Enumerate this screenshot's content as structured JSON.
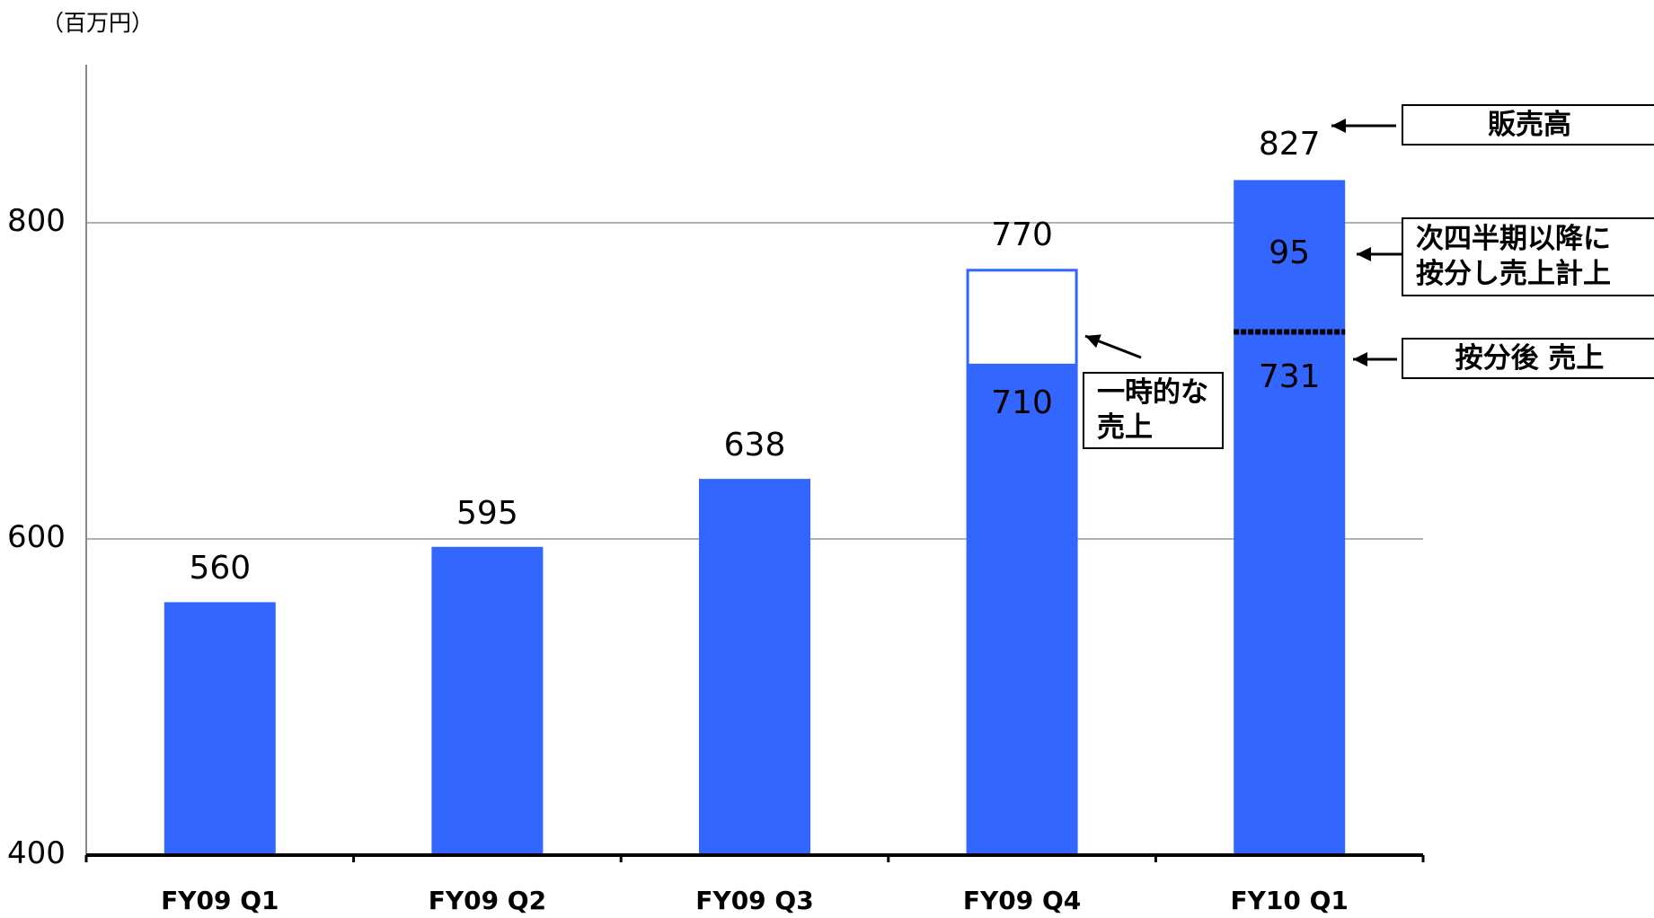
{
  "chart_data": {
    "type": "bar",
    "unit_label": "（百万円）",
    "categories": [
      "FY09 Q1",
      "FY09 Q2",
      "FY09 Q3",
      "FY09 Q4",
      "FY10 Q1"
    ],
    "values": [
      560,
      595,
      638,
      770,
      827
    ],
    "yticks": [
      "400",
      "600",
      "800"
    ],
    "ylim": [
      400,
      900
    ],
    "grid": true,
    "bar_color": "#3366FF",
    "breakdowns": {
      "FY09 Q4": {
        "base": 710,
        "base_label": "710",
        "total_label": "770"
      },
      "FY10 Q1": {
        "base": 731,
        "base_label": "731",
        "extra_label": "95",
        "total_label": "827"
      }
    },
    "value_labels": [
      "560",
      "595",
      "638",
      "770",
      "827"
    ]
  },
  "annotations": {
    "sales": "販売高",
    "deferred": "次四半期以降に\n按分し売上計上",
    "after_allocation": "按分後 売上",
    "temporary": "一時的な\n売上"
  }
}
